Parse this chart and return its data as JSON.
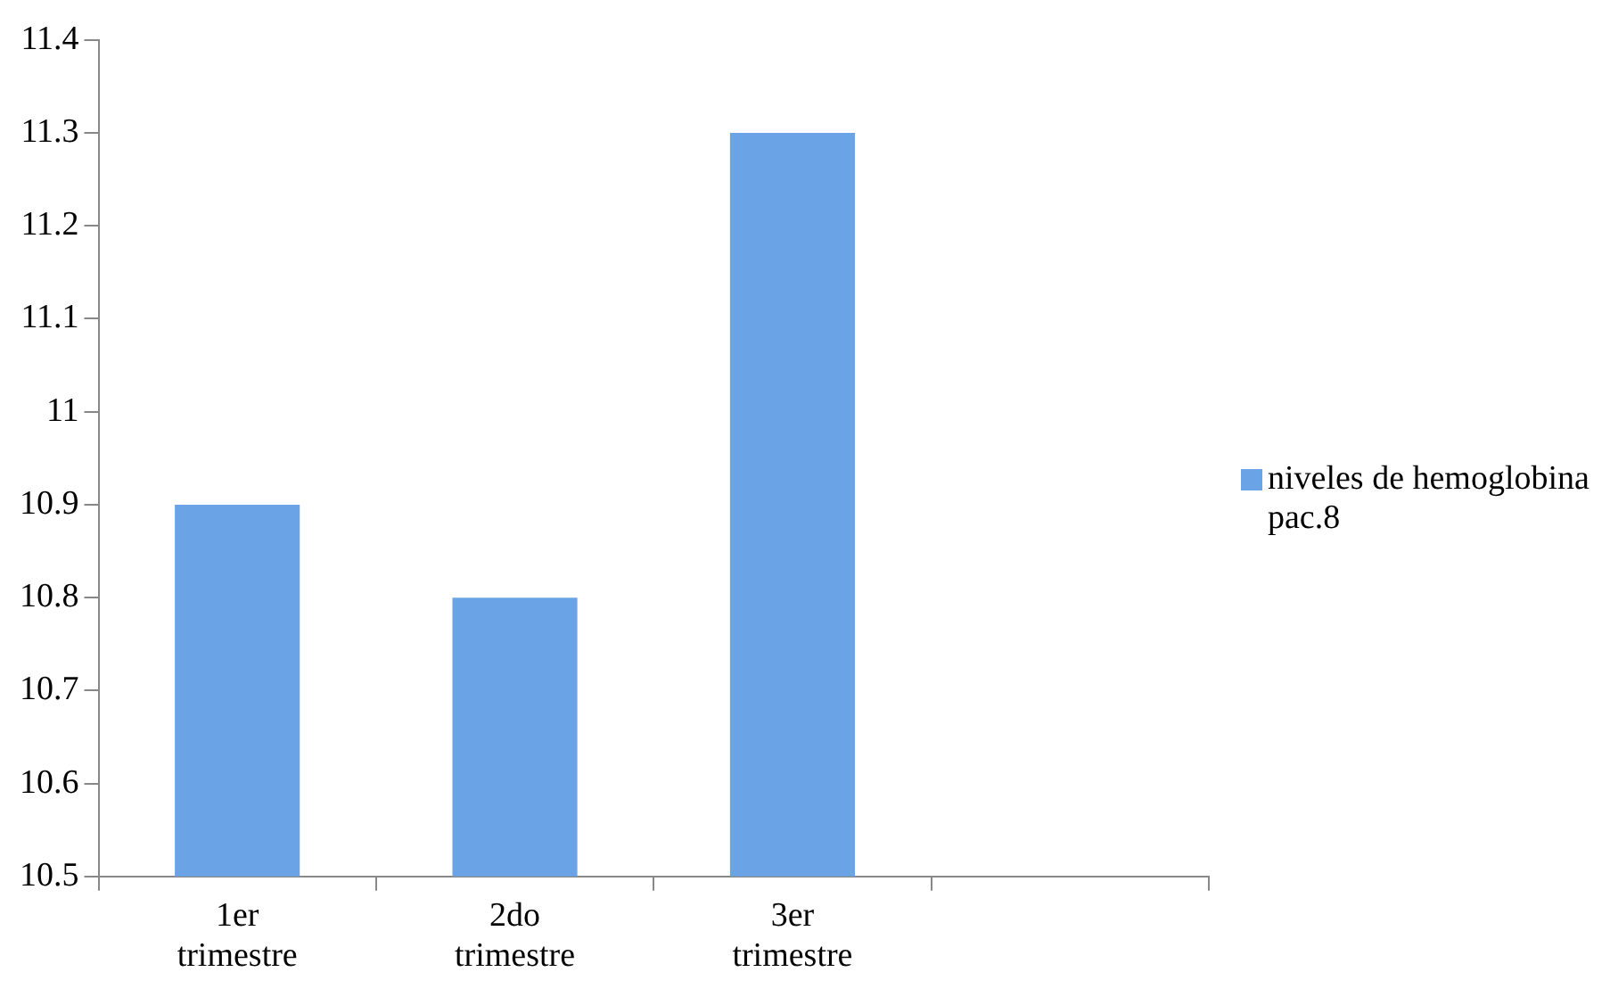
{
  "chart_data": {
    "type": "bar",
    "categories": [
      "1er trimestre",
      "2do trimestre",
      "3er trimestre",
      null
    ],
    "series": [
      {
        "name": "niveles de hemoglobina pac.8",
        "color": "#6aa4e6",
        "values": [
          10.9,
          10.8,
          11.3,
          null
        ]
      }
    ],
    "ylim": [
      10.5,
      11.4
    ],
    "yticks": [
      10.5,
      10.6,
      10.7,
      10.8,
      10.9,
      11,
      11.1,
      11.2,
      11.3,
      11.4
    ],
    "grid": false,
    "legend": "right"
  }
}
